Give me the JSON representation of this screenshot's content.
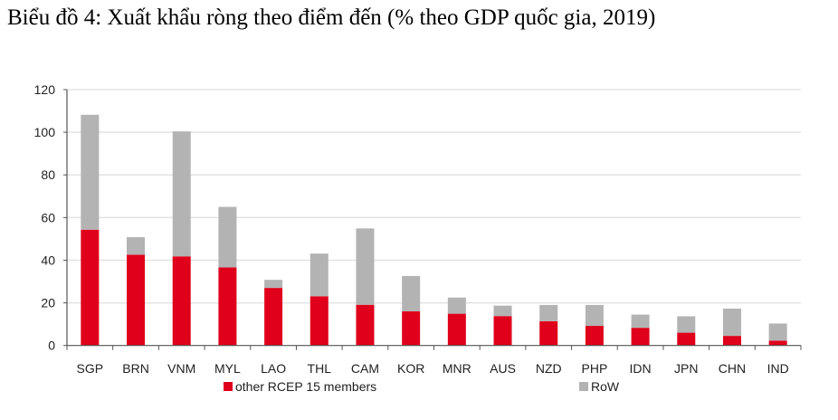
{
  "chart_data": {
    "type": "bar",
    "stacked": true,
    "title": "Biểu đồ 4: Xuất khẩu ròng theo điểm đến (% theo GDP quốc gia, 2019)",
    "xlabel": "",
    "ylabel": "",
    "ylim": [
      0,
      120
    ],
    "yticks": [
      0,
      20,
      40,
      60,
      80,
      100,
      120
    ],
    "grid": true,
    "legend_position": "bottom",
    "categories": [
      "SGP",
      "BRN",
      "VNM",
      "MYL",
      "LAO",
      "THL",
      "CAM",
      "KOR",
      "MNR",
      "AUS",
      "NZD",
      "PHP",
      "IDN",
      "JPN",
      "CHN",
      "IND"
    ],
    "series": [
      {
        "name": "other RCEP 15 members",
        "color": "#e0001b",
        "values": [
          54.3,
          42.6,
          41.8,
          36.6,
          27.0,
          23.1,
          19.1,
          16.0,
          14.9,
          13.8,
          11.4,
          9.2,
          8.3,
          6.0,
          4.5,
          2.3
        ]
      },
      {
        "name": "RoW",
        "color": "#b3b3b3",
        "values": [
          53.9,
          8.2,
          58.6,
          28.4,
          3.8,
          20.0,
          35.8,
          16.6,
          7.6,
          4.9,
          7.6,
          9.8,
          6.2,
          7.7,
          12.8,
          8.0
        ]
      }
    ]
  }
}
